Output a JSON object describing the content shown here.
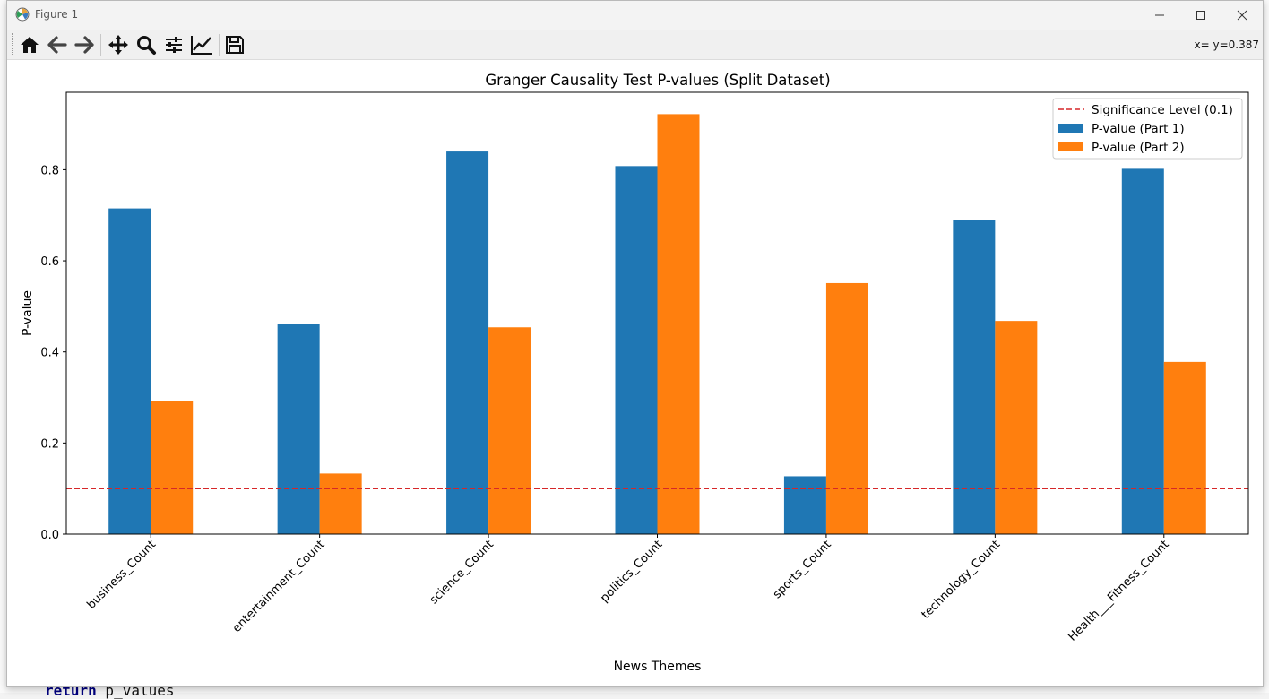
{
  "window": {
    "title": "Figure 1"
  },
  "toolbar": {
    "buttons": [
      "home-icon",
      "back-arrow-icon",
      "forward-arrow-icon",
      "pan-icon",
      "zoom-icon",
      "subplots-icon",
      "edit-axis-icon",
      "save-icon"
    ],
    "coord_readout": "x= y=0.387"
  },
  "background_code": {
    "keyword": "return",
    "text": " p_values"
  },
  "chart_data": {
    "type": "bar",
    "title": "Granger Causality Test P-values (Split Dataset)",
    "xlabel": "News Themes",
    "ylabel": "P-value",
    "categories": [
      "business_Count",
      "entertainment_Count",
      "science_Count",
      "politics_Count",
      "sports_Count",
      "technology_Count",
      "Health___Fitness_Count"
    ],
    "series": [
      {
        "name": "P-value (Part 1)",
        "color": "#1f77b4",
        "values": [
          0.715,
          0.461,
          0.84,
          0.808,
          0.127,
          0.69,
          0.802
        ]
      },
      {
        "name": "P-value (Part 2)",
        "color": "#ff7f0e",
        "values": [
          0.293,
          0.133,
          0.454,
          0.922,
          0.551,
          0.468,
          0.378
        ]
      }
    ],
    "hline": {
      "label": "Significance Level (0.1)",
      "value": 0.1,
      "color": "#d62728",
      "style": "dashed"
    },
    "ylim": [
      0,
      0.97
    ],
    "yticks": [
      0.0,
      0.2,
      0.4,
      0.6,
      0.8
    ],
    "ytick_labels": [
      "0.0",
      "0.2",
      "0.4",
      "0.6",
      "0.8"
    ],
    "grid": false,
    "legend_position": "upper right"
  }
}
